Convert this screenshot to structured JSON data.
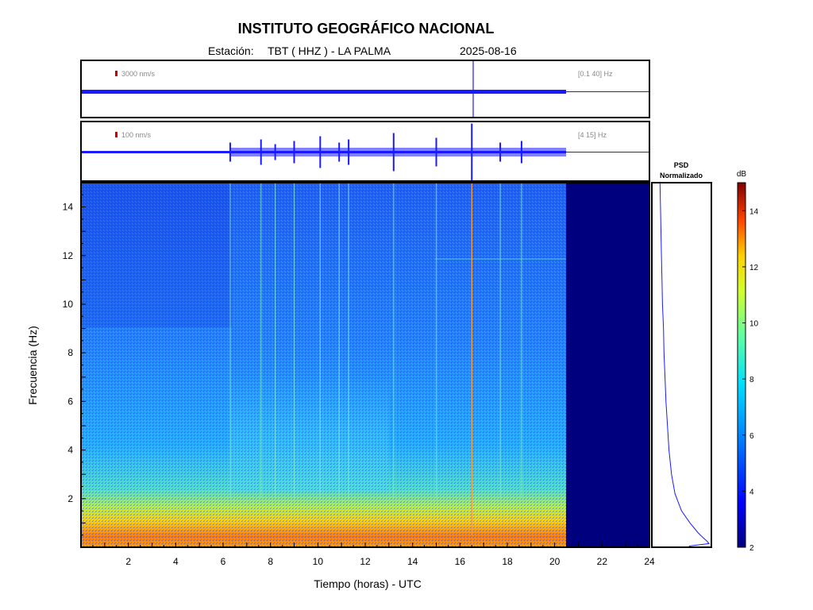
{
  "header": {
    "title": "INSTITUTO GEOGRÁFICO NACIONAL",
    "station_label": "Estación:",
    "station_value": "TBT ( HHZ ) - LA PALMA",
    "date": "2025-08-16"
  },
  "traces": [
    {
      "scale": "3000 nm/s",
      "band": "[0.1 40] Hz"
    },
    {
      "scale": "100 nm/s",
      "band": "[4 15] Hz"
    }
  ],
  "psd_title": [
    "PSD",
    "Normalizado"
  ],
  "colors": {
    "trace": "#1a1aff",
    "scale_bar": "#d00000",
    "no_data": "#00007f",
    "frame": "#000000"
  },
  "chart_data": [
    {
      "type": "line",
      "title": "",
      "trace": "top",
      "scale": "3000 nm/s",
      "band": "[0.1 40] Hz",
      "x_range": [
        0,
        24
      ],
      "data_end_hour": 20.5,
      "events": [
        {
          "x": 16.5,
          "kind": "large spike"
        }
      ]
    },
    {
      "type": "line",
      "title": "",
      "trace": "bottom",
      "scale": "100 nm/s",
      "band": "[4 15] Hz",
      "x_range": [
        0,
        24
      ],
      "data_end_hour": 20.5,
      "events": [
        {
          "x": 6.3
        },
        {
          "x": 7.6
        },
        {
          "x": 8.2
        },
        {
          "x": 9.0
        },
        {
          "x": 10.1
        },
        {
          "x": 10.9
        },
        {
          "x": 11.3
        },
        {
          "x": 13.2
        },
        {
          "x": 15.0
        },
        {
          "x": 16.5
        },
        {
          "x": 17.7
        },
        {
          "x": 18.6
        }
      ]
    },
    {
      "type": "heatmap",
      "title": "",
      "xlabel": "Tiempo (horas) - UTC",
      "ylabel": "Frecuencia  (Hz)",
      "x_range": [
        0,
        24
      ],
      "y_range": [
        0,
        15
      ],
      "x_ticks": [
        "2",
        "4",
        "6",
        "8",
        "10",
        "12",
        "14",
        "16",
        "18",
        "20",
        "22",
        "24"
      ],
      "y_ticks": [
        "2",
        "4",
        "6",
        "8",
        "10",
        "12",
        "14"
      ],
      "data_end_hour": 20.5,
      "colorbar": {
        "label": "dB",
        "range": [
          2,
          15
        ],
        "ticks": [
          "2",
          "4",
          "6",
          "8",
          "10",
          "12",
          "14"
        ]
      },
      "event_lines_hours": [
        6.3,
        7.6,
        8.2,
        9.0,
        10.1,
        10.9,
        11.3,
        13.2,
        15.0,
        16.5,
        17.7,
        18.6
      ],
      "bands": [
        {
          "freq_hz": [
            0,
            1
          ],
          "level_db": 11
        },
        {
          "freq_hz": [
            1,
            2
          ],
          "level_db": 9
        },
        {
          "freq_hz": [
            2,
            15
          ],
          "level_db": 6
        }
      ]
    },
    {
      "type": "line",
      "title": "PSD Normalizado",
      "orientation": "vertical",
      "y_range": [
        0,
        15
      ],
      "x_range": [
        0,
        1
      ],
      "points": [
        [
          0.02,
          15
        ],
        [
          0.03,
          14
        ],
        [
          0.04,
          13
        ],
        [
          0.05,
          12
        ],
        [
          0.06,
          11
        ],
        [
          0.07,
          10
        ],
        [
          0.09,
          9
        ],
        [
          0.1,
          8
        ],
        [
          0.12,
          7
        ],
        [
          0.14,
          6
        ],
        [
          0.17,
          5
        ],
        [
          0.2,
          4
        ],
        [
          0.25,
          3
        ],
        [
          0.32,
          2.2
        ],
        [
          0.45,
          1.5
        ],
        [
          0.62,
          1.0
        ],
        [
          0.78,
          0.6
        ],
        [
          0.88,
          0.4
        ],
        [
          0.96,
          0.25
        ],
        [
          1.0,
          0.15
        ],
        [
          0.6,
          0.05
        ]
      ]
    }
  ]
}
